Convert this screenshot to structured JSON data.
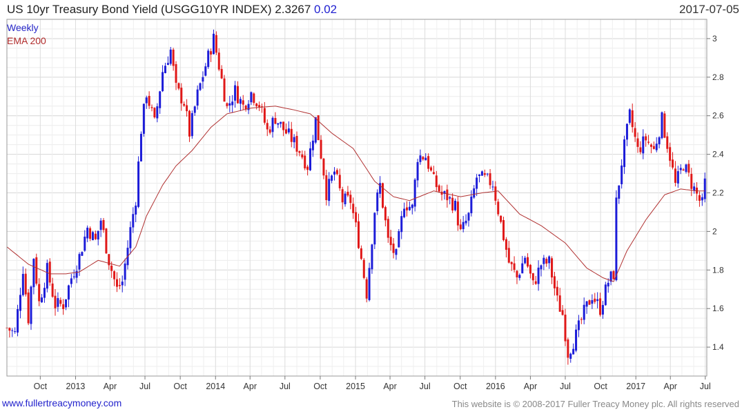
{
  "header": {
    "title": "US 10yr Treasury Bond Yield (USGG10YR INDEX) 2.3267",
    "change": "0.02",
    "date": "2017-07-05"
  },
  "legend": {
    "series_label": "Weekly",
    "ema_label": "EMA 200"
  },
  "footer": {
    "site": "www.fullertreacymoney.com",
    "copyright": "This website is © 2008-2017 Fuller Treacy Money plc. All rights reserved"
  },
  "colors": {
    "up_candle": "#1c1cd8",
    "down_candle": "#e01818",
    "ema_line": "#b03030",
    "grid": "#e0e0e0"
  },
  "chart_data": {
    "type": "candlestick",
    "title": "US 10yr Treasury Bond Yield (USGG10YR INDEX) 2.3267",
    "frequency": "Weekly",
    "x_range": [
      "2012-07-06",
      "2017-07-05"
    ],
    "ylim": [
      1.25,
      3.1
    ],
    "y_ticks": [
      1.4,
      1.6,
      1.8,
      2,
      2.2,
      2.4,
      2.6,
      2.8,
      3
    ],
    "x_ticks": [
      {
        "label": "Oct",
        "date": "2012-10-01"
      },
      {
        "label": "2013",
        "date": "2013-01-01"
      },
      {
        "label": "Apr",
        "date": "2013-04-01"
      },
      {
        "label": "Jul",
        "date": "2013-07-01"
      },
      {
        "label": "Oct",
        "date": "2013-10-01"
      },
      {
        "label": "2014",
        "date": "2014-01-01"
      },
      {
        "label": "Apr",
        "date": "2014-04-01"
      },
      {
        "label": "Jul",
        "date": "2014-07-01"
      },
      {
        "label": "Oct",
        "date": "2014-10-01"
      },
      {
        "label": "2015",
        "date": "2015-01-01"
      },
      {
        "label": "Apr",
        "date": "2015-04-01"
      },
      {
        "label": "Jul",
        "date": "2015-07-01"
      },
      {
        "label": "Oct",
        "date": "2015-10-01"
      },
      {
        "label": "2016",
        "date": "2016-01-01"
      },
      {
        "label": "Apr",
        "date": "2016-04-01"
      },
      {
        "label": "Jul",
        "date": "2016-07-01"
      },
      {
        "label": "Oct",
        "date": "2016-10-01"
      },
      {
        "label": "2017",
        "date": "2017-01-01"
      },
      {
        "label": "Apr",
        "date": "2017-04-01"
      },
      {
        "label": "Jul",
        "date": "2017-07-01"
      }
    ],
    "close_path": [
      [
        "2012-07-06",
        1.5
      ],
      [
        "2012-07-27",
        1.47
      ],
      [
        "2012-08-17",
        1.81
      ],
      [
        "2012-08-31",
        1.55
      ],
      [
        "2012-09-14",
        1.87
      ],
      [
        "2012-09-28",
        1.63
      ],
      [
        "2012-10-19",
        1.8
      ],
      [
        "2012-11-09",
        1.62
      ],
      [
        "2012-11-30",
        1.62
      ],
      [
        "2012-12-21",
        1.76
      ],
      [
        "2013-01-11",
        1.87
      ],
      [
        "2013-02-01",
        2.02
      ],
      [
        "2013-02-22",
        1.95
      ],
      [
        "2013-03-08",
        2.06
      ],
      [
        "2013-03-29",
        1.85
      ],
      [
        "2013-04-19",
        1.7
      ],
      [
        "2013-05-03",
        1.74
      ],
      [
        "2013-05-24",
        2.01
      ],
      [
        "2013-06-07",
        2.17
      ],
      [
        "2013-06-21",
        2.53
      ],
      [
        "2013-07-05",
        2.72
      ],
      [
        "2013-07-26",
        2.56
      ],
      [
        "2013-08-16",
        2.83
      ],
      [
        "2013-09-06",
        2.94
      ],
      [
        "2013-09-20",
        2.74
      ],
      [
        "2013-10-11",
        2.67
      ],
      [
        "2013-10-25",
        2.51
      ],
      [
        "2013-11-15",
        2.71
      ],
      [
        "2013-12-06",
        2.86
      ],
      [
        "2013-12-27",
        3.0
      ],
      [
        "2014-01-10",
        2.86
      ],
      [
        "2014-01-31",
        2.64
      ],
      [
        "2014-02-21",
        2.73
      ],
      [
        "2014-03-14",
        2.65
      ],
      [
        "2014-04-04",
        2.72
      ],
      [
        "2014-04-25",
        2.66
      ],
      [
        "2014-05-16",
        2.52
      ],
      [
        "2014-06-06",
        2.59
      ],
      [
        "2014-06-27",
        2.53
      ],
      [
        "2014-07-18",
        2.48
      ],
      [
        "2014-08-08",
        2.42
      ],
      [
        "2014-08-29",
        2.34
      ],
      [
        "2014-09-19",
        2.58
      ],
      [
        "2014-10-10",
        2.31
      ],
      [
        "2014-10-17",
        2.2
      ],
      [
        "2014-11-07",
        2.31
      ],
      [
        "2014-11-28",
        2.16
      ],
      [
        "2014-12-19",
        2.16
      ],
      [
        "2015-01-09",
        1.95
      ],
      [
        "2015-01-30",
        1.68
      ],
      [
        "2015-02-20",
        2.11
      ],
      [
        "2015-03-06",
        2.24
      ],
      [
        "2015-03-27",
        1.95
      ],
      [
        "2015-04-17",
        1.87
      ],
      [
        "2015-05-08",
        2.15
      ],
      [
        "2015-05-29",
        2.12
      ],
      [
        "2015-06-12",
        2.39
      ],
      [
        "2015-07-03",
        2.39
      ],
      [
        "2015-07-24",
        2.26
      ],
      [
        "2015-08-14",
        2.19
      ],
      [
        "2015-08-28",
        2.18
      ],
      [
        "2015-09-18",
        2.13
      ],
      [
        "2015-10-02",
        1.99
      ],
      [
        "2015-10-23",
        2.08
      ],
      [
        "2015-11-13",
        2.28
      ],
      [
        "2015-12-04",
        2.27
      ],
      [
        "2015-12-25",
        2.25
      ],
      [
        "2016-01-15",
        2.04
      ],
      [
        "2016-02-05",
        1.84
      ],
      [
        "2016-02-26",
        1.76
      ],
      [
        "2016-03-18",
        1.87
      ],
      [
        "2016-04-08",
        1.72
      ],
      [
        "2016-04-29",
        1.83
      ],
      [
        "2016-05-20",
        1.84
      ],
      [
        "2016-06-10",
        1.64
      ],
      [
        "2016-06-24",
        1.57
      ],
      [
        "2016-07-08",
        1.37
      ],
      [
        "2016-07-29",
        1.46
      ],
      [
        "2016-08-19",
        1.58
      ],
      [
        "2016-09-09",
        1.67
      ],
      [
        "2016-09-30",
        1.6
      ],
      [
        "2016-10-21",
        1.74
      ],
      [
        "2016-11-04",
        1.78
      ],
      [
        "2016-11-11",
        2.15
      ],
      [
        "2016-11-25",
        2.36
      ],
      [
        "2016-12-16",
        2.6
      ],
      [
        "2017-01-06",
        2.42
      ],
      [
        "2017-01-27",
        2.48
      ],
      [
        "2017-02-17",
        2.42
      ],
      [
        "2017-03-10",
        2.58
      ],
      [
        "2017-03-31",
        2.39
      ],
      [
        "2017-04-14",
        2.24
      ],
      [
        "2017-05-05",
        2.35
      ],
      [
        "2017-05-26",
        2.25
      ],
      [
        "2017-06-16",
        2.16
      ],
      [
        "2017-06-23",
        2.14
      ],
      [
        "2017-07-05",
        2.33
      ]
    ],
    "ema200": [
      [
        "2012-07-06",
        1.92
      ],
      [
        "2012-08-31",
        1.83
      ],
      [
        "2012-10-26",
        1.78
      ],
      [
        "2012-12-07",
        1.78
      ],
      [
        "2013-01-11",
        1.79
      ],
      [
        "2013-03-01",
        1.85
      ],
      [
        "2013-04-26",
        1.82
      ],
      [
        "2013-06-07",
        1.92
      ],
      [
        "2013-07-05",
        2.08
      ],
      [
        "2013-08-16",
        2.24
      ],
      [
        "2013-09-20",
        2.34
      ],
      [
        "2013-11-01",
        2.42
      ],
      [
        "2013-12-20",
        2.54
      ],
      [
        "2014-01-31",
        2.61
      ],
      [
        "2014-04-04",
        2.64
      ],
      [
        "2014-06-06",
        2.65
      ],
      [
        "2014-07-25",
        2.63
      ],
      [
        "2014-09-05",
        2.61
      ],
      [
        "2014-10-31",
        2.51
      ],
      [
        "2014-12-26",
        2.43
      ],
      [
        "2015-02-20",
        2.26
      ],
      [
        "2015-04-10",
        2.18
      ],
      [
        "2015-05-22",
        2.16
      ],
      [
        "2015-07-24",
        2.21
      ],
      [
        "2015-10-02",
        2.18
      ],
      [
        "2015-11-27",
        2.2
      ],
      [
        "2016-01-08",
        2.21
      ],
      [
        "2016-03-04",
        2.09
      ],
      [
        "2016-04-29",
        2.03
      ],
      [
        "2016-07-01",
        1.94
      ],
      [
        "2016-08-26",
        1.81
      ],
      [
        "2016-10-07",
        1.76
      ],
      [
        "2016-11-04",
        1.74
      ],
      [
        "2016-12-09",
        1.9
      ],
      [
        "2017-01-27",
        2.06
      ],
      [
        "2017-03-17",
        2.19
      ],
      [
        "2017-04-28",
        2.22
      ],
      [
        "2017-06-09",
        2.21
      ],
      [
        "2017-07-05",
        2.21
      ]
    ]
  }
}
